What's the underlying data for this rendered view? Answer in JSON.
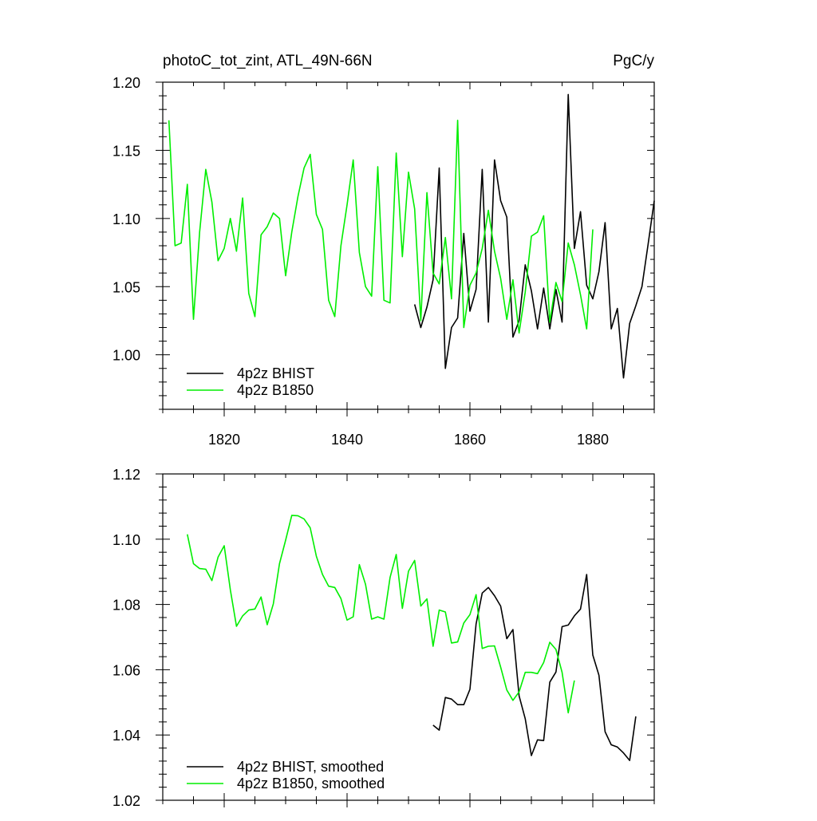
{
  "figure": {
    "title_left": "photoC_tot_zint, ATL_49N-66N",
    "title_right": "PgC/y"
  },
  "colors": {
    "bhist": "#000000",
    "b1850": "#00ee00",
    "axes": "#000000",
    "background": "#ffffff"
  },
  "chart_data": [
    {
      "type": "line",
      "xlim": [
        1810,
        1890
      ],
      "ylim": [
        0.96,
        1.2
      ],
      "xticks": [
        1820,
        1840,
        1860,
        1880
      ],
      "xtick_labels": [
        "1820",
        "1840",
        "1860",
        "1880"
      ],
      "yticks": [
        1.0,
        1.05,
        1.1,
        1.15,
        1.2
      ],
      "ytick_labels": [
        "1.00",
        "1.05",
        "1.10",
        "1.15",
        "1.20"
      ],
      "grid": false,
      "legend_position": "bottom-left",
      "series": [
        {
          "name": "4p2z BHIST",
          "color": "#000000",
          "x": [
            1851,
            1852,
            1853,
            1854,
            1855,
            1856,
            1857,
            1858,
            1859,
            1860,
            1861,
            1862,
            1863,
            1864,
            1865,
            1866,
            1867,
            1868,
            1869,
            1870,
            1871,
            1872,
            1873,
            1874,
            1875,
            1876,
            1877,
            1878,
            1879,
            1880,
            1881,
            1882,
            1883,
            1884,
            1885,
            1886,
            1887,
            1888,
            1889,
            1890
          ],
          "y": [
            1.037,
            1.02,
            1.035,
            1.055,
            1.137,
            0.99,
            1.02,
            1.027,
            1.089,
            1.032,
            1.048,
            1.136,
            1.024,
            1.143,
            1.113,
            1.101,
            1.013,
            1.025,
            1.066,
            1.047,
            1.019,
            1.049,
            1.019,
            1.048,
            1.024,
            1.191,
            1.078,
            1.105,
            1.051,
            1.041,
            1.061,
            1.097,
            1.019,
            1.034,
            0.983,
            1.023,
            1.036,
            1.05,
            1.081,
            1.113
          ]
        },
        {
          "name": "4p2z B1850",
          "color": "#00ee00",
          "x": [
            1811,
            1812,
            1813,
            1814,
            1815,
            1816,
            1817,
            1818,
            1819,
            1820,
            1821,
            1822,
            1823,
            1824,
            1825,
            1826,
            1827,
            1828,
            1829,
            1830,
            1831,
            1832,
            1833,
            1834,
            1835,
            1836,
            1837,
            1838,
            1839,
            1840,
            1841,
            1842,
            1843,
            1844,
            1845,
            1846,
            1847,
            1848,
            1849,
            1850,
            1851,
            1852,
            1853,
            1854,
            1855,
            1856,
            1857,
            1858,
            1859,
            1860,
            1861,
            1862,
            1863,
            1864,
            1865,
            1866,
            1867,
            1868,
            1869,
            1870,
            1871,
            1872,
            1873,
            1874,
            1875,
            1876,
            1877,
            1878,
            1879,
            1880
          ],
          "y": [
            1.172,
            1.08,
            1.082,
            1.125,
            1.026,
            1.09,
            1.136,
            1.112,
            1.069,
            1.078,
            1.1,
            1.076,
            1.115,
            1.045,
            1.028,
            1.088,
            1.094,
            1.104,
            1.1,
            1.058,
            1.09,
            1.116,
            1.137,
            1.147,
            1.103,
            1.092,
            1.04,
            1.028,
            1.08,
            1.11,
            1.143,
            1.075,
            1.05,
            1.043,
            1.138,
            1.04,
            1.038,
            1.148,
            1.072,
            1.134,
            1.107,
            1.025,
            1.119,
            1.06,
            1.052,
            1.086,
            1.041,
            1.172,
            1.02,
            1.051,
            1.06,
            1.078,
            1.106,
            1.076,
            1.056,
            1.026,
            1.055,
            1.016,
            1.046,
            1.087,
            1.09,
            1.102,
            1.024,
            1.053,
            1.039,
            1.082,
            1.066,
            1.044,
            1.019,
            1.092
          ]
        }
      ]
    },
    {
      "type": "line",
      "xlim": [
        1810,
        1890
      ],
      "ylim": [
        1.02,
        1.12
      ],
      "xticks": [
        1820,
        1840,
        1860,
        1880
      ],
      "xtick_labels": [],
      "yticks": [
        1.02,
        1.04,
        1.06,
        1.08,
        1.1,
        1.12
      ],
      "ytick_labels": [
        "1.02",
        "1.04",
        "1.06",
        "1.08",
        "1.10",
        "1.12"
      ],
      "grid": false,
      "legend_position": "bottom-left",
      "series": [
        {
          "name": "4p2z BHIST, smoothed",
          "color": "#000000",
          "x": [
            1854,
            1855,
            1856,
            1857,
            1858,
            1859,
            1860,
            1861,
            1862,
            1863,
            1864,
            1865,
            1866,
            1867,
            1868,
            1869,
            1870,
            1871,
            1872,
            1873,
            1874,
            1875,
            1876,
            1877,
            1878,
            1879,
            1880,
            1881,
            1882,
            1883,
            1884,
            1885,
            1886,
            1887
          ],
          "y": [
            1.043,
            1.0415,
            1.0515,
            1.051,
            1.0493,
            1.0493,
            1.054,
            1.074,
            1.0835,
            1.0852,
            1.0827,
            1.0795,
            1.0695,
            1.0723,
            1.052,
            1.045,
            1.0337,
            1.0385,
            1.0383,
            1.0562,
            1.0593,
            1.0732,
            1.0737,
            1.0765,
            1.0786,
            1.0892,
            1.0645,
            1.0583,
            1.041,
            1.037,
            1.0363,
            1.0345,
            1.0322,
            1.0457
          ]
        },
        {
          "name": "4p2z B1850, smoothed",
          "color": "#00ee00",
          "x": [
            1814,
            1815,
            1816,
            1817,
            1818,
            1819,
            1820,
            1821,
            1822,
            1823,
            1824,
            1825,
            1826,
            1827,
            1828,
            1829,
            1830,
            1831,
            1832,
            1833,
            1834,
            1835,
            1836,
            1837,
            1838,
            1839,
            1840,
            1841,
            1842,
            1843,
            1844,
            1845,
            1846,
            1847,
            1848,
            1849,
            1850,
            1851,
            1852,
            1853,
            1854,
            1855,
            1856,
            1857,
            1858,
            1859,
            1860,
            1861,
            1862,
            1863,
            1864,
            1865,
            1866,
            1867,
            1868,
            1869,
            1870,
            1871,
            1872,
            1873,
            1874,
            1875,
            1876,
            1877
          ],
          "y": [
            1.1015,
            1.0925,
            1.091,
            1.0908,
            1.0873,
            1.0945,
            1.098,
            1.0845,
            1.0733,
            1.0765,
            1.0783,
            1.0786,
            1.0823,
            1.0738,
            1.0802,
            1.0925,
            1.0997,
            1.1073,
            1.1072,
            1.1062,
            1.1035,
            1.0948,
            1.0892,
            1.0856,
            1.0852,
            1.0818,
            1.0752,
            1.0762,
            1.0922,
            1.0862,
            1.0755,
            1.0762,
            1.0755,
            1.0883,
            1.0953,
            1.0788,
            1.0902,
            1.0935,
            1.0795,
            1.0817,
            1.0672,
            1.0783,
            1.0777,
            1.0682,
            1.0685,
            1.0743,
            1.0769,
            1.083,
            1.0665,
            1.0672,
            1.0673,
            1.0608,
            1.0538,
            1.0506,
            1.0532,
            1.0592,
            1.0592,
            1.0588,
            1.0622,
            1.0684,
            1.0662,
            1.0592,
            1.0468,
            1.0567
          ]
        }
      ]
    }
  ]
}
